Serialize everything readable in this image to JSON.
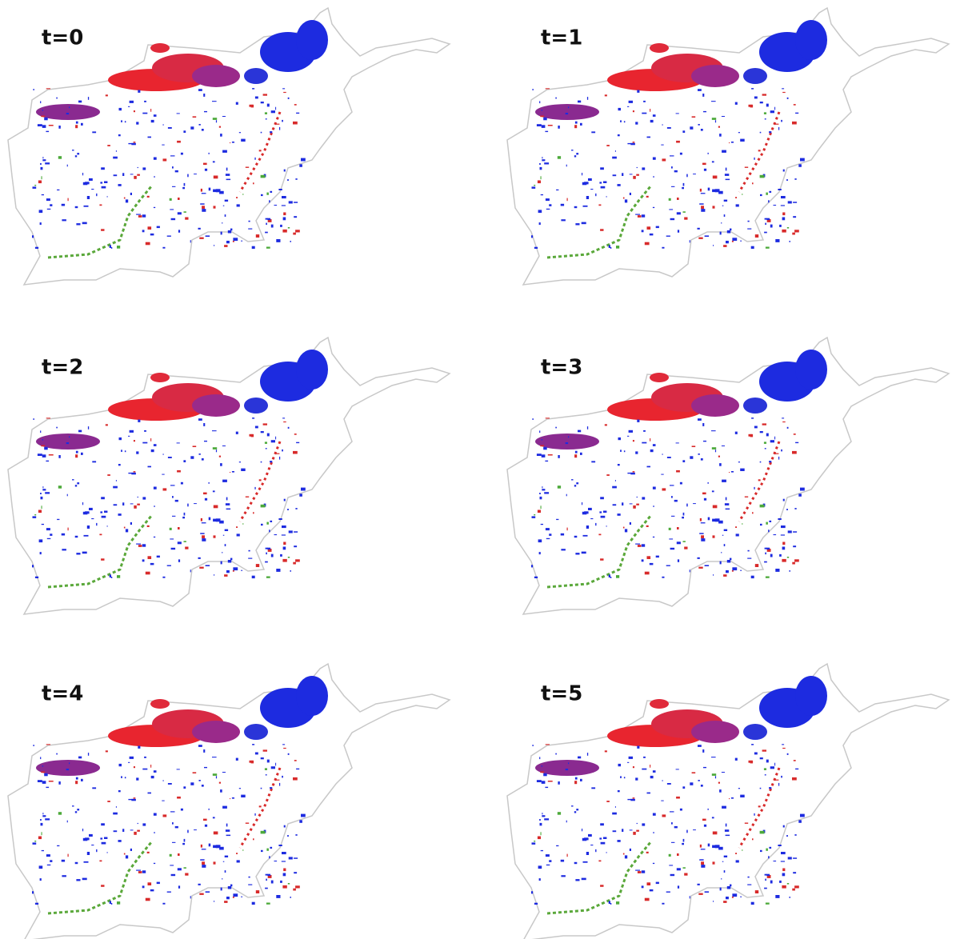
{
  "panels": [
    {
      "label": "t=0"
    },
    {
      "label": "t=1"
    },
    {
      "label": "t=2"
    },
    {
      "label": "t=3"
    },
    {
      "label": "t=4"
    },
    {
      "label": "t=5"
    }
  ]
}
